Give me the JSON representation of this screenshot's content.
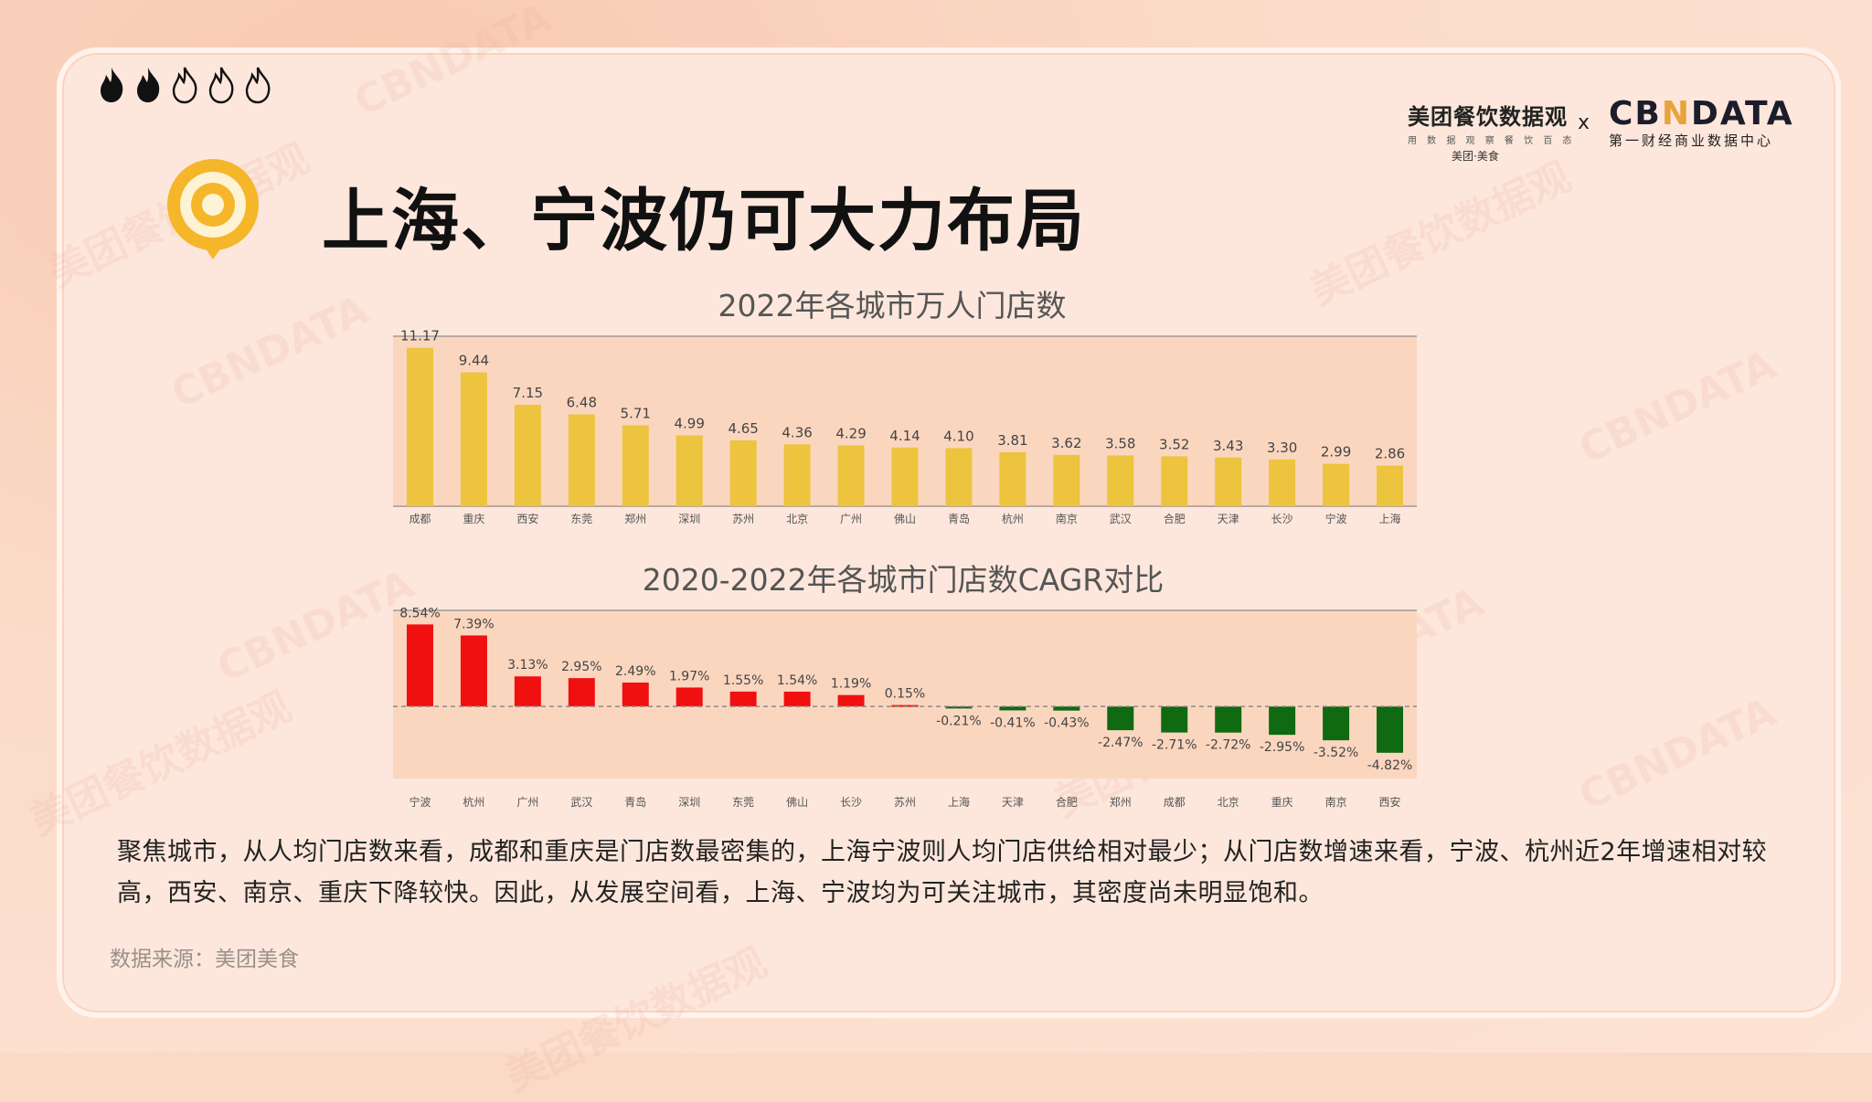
{
  "brand": {
    "meituan_title": "美团餐饮数据观",
    "meituan_sub": "用 数 据 观 察 餐 饮 百 态",
    "meituan_tag": "美团·美食",
    "cross": "x",
    "cbn_title_a": "CB",
    "cbn_title_n": "N",
    "cbn_title_b": "DATA",
    "cbn_sub": "第一财经商业数据中心"
  },
  "page_title": "上海、宁波仍可大力布局",
  "colors": {
    "bar_yellow": "#ecc43e",
    "bar_red": "#f01010",
    "bar_green": "#0f6a12",
    "plot_bg": "#fbd6bf",
    "accent": "#f6b62a"
  },
  "chart_data": [
    {
      "type": "bar",
      "title": "2022年各城市万人门店数",
      "categories": [
        "成都",
        "重庆",
        "西安",
        "东莞",
        "郑州",
        "深圳",
        "苏州",
        "北京",
        "广州",
        "佛山",
        "青岛",
        "杭州",
        "南京",
        "武汉",
        "合肥",
        "天津",
        "长沙",
        "宁波",
        "上海"
      ],
      "values": [
        11.17,
        9.44,
        7.15,
        6.48,
        5.71,
        4.99,
        4.65,
        4.36,
        4.29,
        4.14,
        4.1,
        3.81,
        3.62,
        3.58,
        3.52,
        3.43,
        3.3,
        2.99,
        2.86
      ],
      "labels": [
        "11.17",
        "9.44",
        "7.15",
        "6.48",
        "5.71",
        "4.99",
        "4.65",
        "4.36",
        "4.29",
        "4.14",
        "4.10",
        "3.81",
        "3.62",
        "3.58",
        "3.52",
        "3.43",
        "3.30",
        "2.99",
        "2.86"
      ],
      "ylim": [
        0,
        11.6
      ],
      "grid": false
    },
    {
      "type": "bar",
      "title": "2020-2022年各城市门店数CAGR对比",
      "categories": [
        "宁波",
        "杭州",
        "广州",
        "武汉",
        "青岛",
        "深圳",
        "东莞",
        "佛山",
        "长沙",
        "苏州",
        "上海",
        "天津",
        "合肥",
        "郑州",
        "成都",
        "北京",
        "重庆",
        "南京",
        "西安"
      ],
      "values": [
        8.54,
        7.39,
        3.13,
        2.95,
        2.49,
        1.97,
        1.55,
        1.54,
        1.19,
        0.15,
        -0.21,
        -0.41,
        -0.43,
        -2.47,
        -2.71,
        -2.72,
        -2.95,
        -3.52,
        -4.82
      ],
      "labels": [
        "8.54%",
        "7.39%",
        "3.13%",
        "2.95%",
        "2.49%",
        "1.97%",
        "1.55%",
        "1.54%",
        "1.19%",
        "0.15%",
        "-0.21%",
        "-0.41%",
        "-0.43%",
        "-2.47%",
        "-2.71%",
        "-2.72%",
        "-2.95%",
        "-3.52%",
        "-4.82%"
      ],
      "ylim": [
        -7.5,
        10
      ],
      "grid": false
    }
  ],
  "paragraph": "聚焦城市，从人均门店数来看，成都和重庆是门店数最密集的，上海宁波则人均门店供给相对最少；从门店数增速来看，宁波、杭州近2年增速相对较高，西安、南京、重庆下降较快。因此，从发展空间看，上海、宁波均为可关注城市，其密度尚未明显饱和。",
  "source": "数据来源：美团美食",
  "watermarks": [
    "CBNDATA",
    "美团餐饮数据观"
  ]
}
